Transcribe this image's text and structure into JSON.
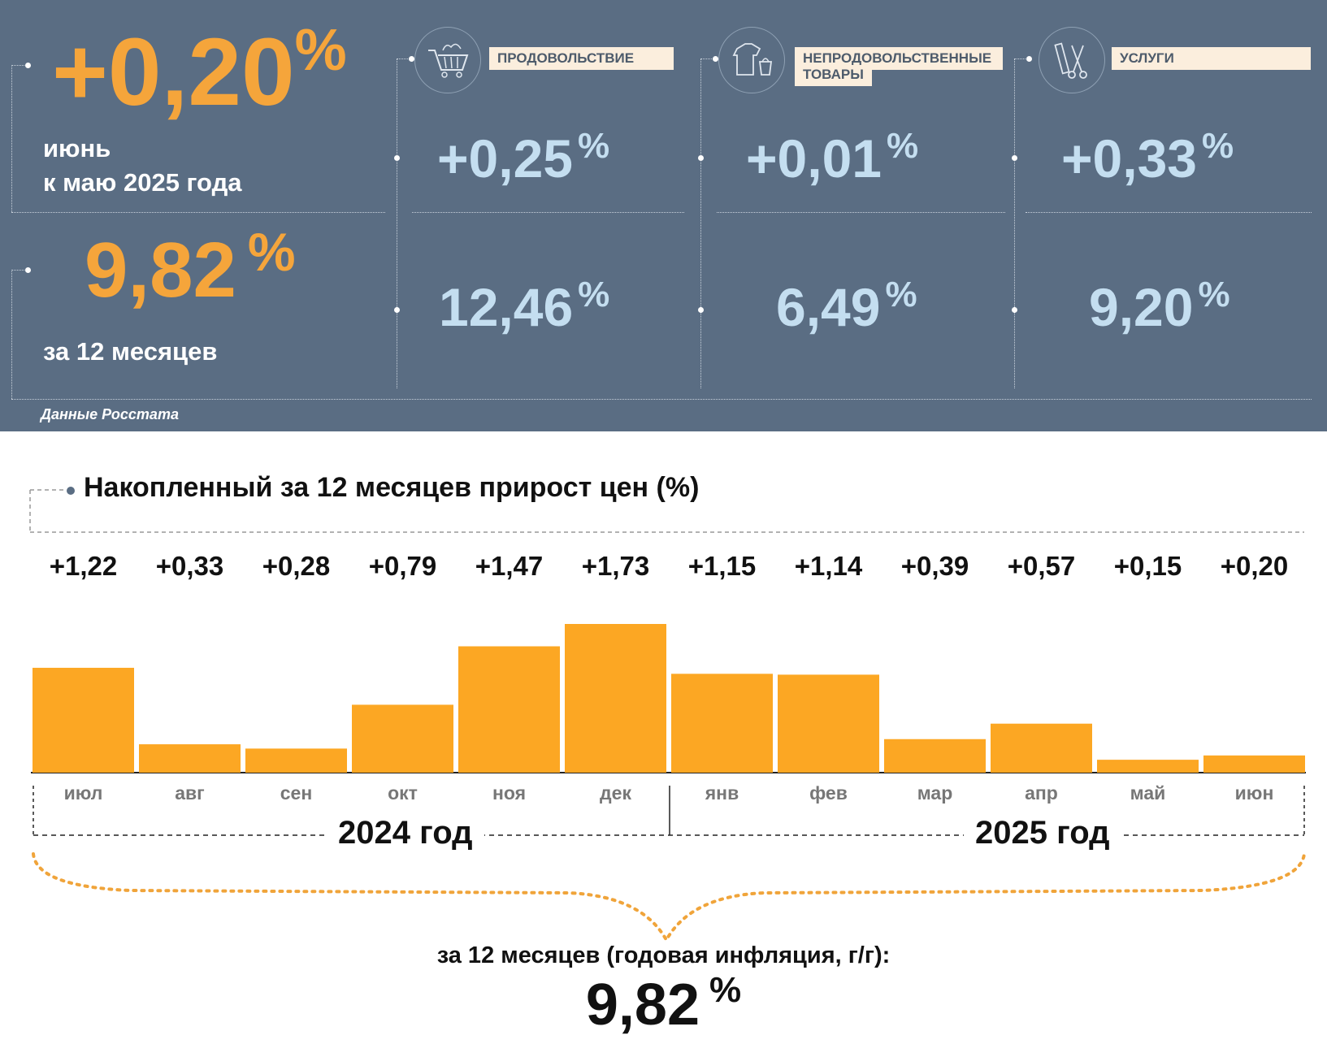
{
  "summary": {
    "monthly_value": "+0,20",
    "monthly_pct": "%",
    "monthly_caption_line1": "июнь",
    "monthly_caption_line2": "к маю 2025 года",
    "annual_value": "9,82",
    "annual_pct": "%",
    "annual_caption": "за 12 месяцев",
    "source": "Данные Росстата"
  },
  "categories": [
    {
      "label": "ПРОДОВОЛЬСТВИЕ",
      "icon": "shopping-cart-icon",
      "monthly": "+0,25",
      "annual": "12,46",
      "pct": "%"
    },
    {
      "label_line1": "НЕПРОДОВОЛЬСТВЕННЫЕ",
      "label_line2": "ТОВАРЫ",
      "icon": "clothing-bag-icon",
      "monthly": "+0,01",
      "annual": "6,49",
      "pct": "%"
    },
    {
      "label": "УСЛУГИ",
      "icon": "comb-scissors-icon",
      "monthly": "+0,33",
      "annual": "9,20",
      "pct": "%"
    }
  ],
  "chart_data": {
    "type": "bar",
    "title": "Накопленный за 12 месяцев прирост цен (%)",
    "categories": [
      "июл",
      "авг",
      "сен",
      "окт",
      "ноя",
      "дек",
      "янв",
      "фев",
      "мар",
      "апр",
      "май",
      "июн"
    ],
    "values": [
      1.22,
      0.33,
      0.28,
      0.79,
      1.47,
      1.73,
      1.15,
      1.14,
      0.39,
      0.57,
      0.15,
      0.2
    ],
    "value_labels": [
      "+1,22",
      "+0,33",
      "+0,28",
      "+0,79",
      "+1,47",
      "+1,73",
      "+1,15",
      "+1,14",
      "+0,39",
      "+0,57",
      "+0,15",
      "+0,20"
    ],
    "year_groups": [
      "2024 год",
      "2025 год"
    ],
    "bar_color": "#fca723",
    "ylim": [
      0,
      1.73
    ]
  },
  "footer": {
    "caption": "за 12 месяцев (годовая инфляция, г/г):",
    "value": "9,82",
    "pct": "%"
  },
  "colors": {
    "panel_bg": "#5a6d83",
    "orange": "#f5a53b",
    "light_blue": "#c4def0",
    "label_bg": "#fbeedd",
    "bar": "#fca723"
  }
}
